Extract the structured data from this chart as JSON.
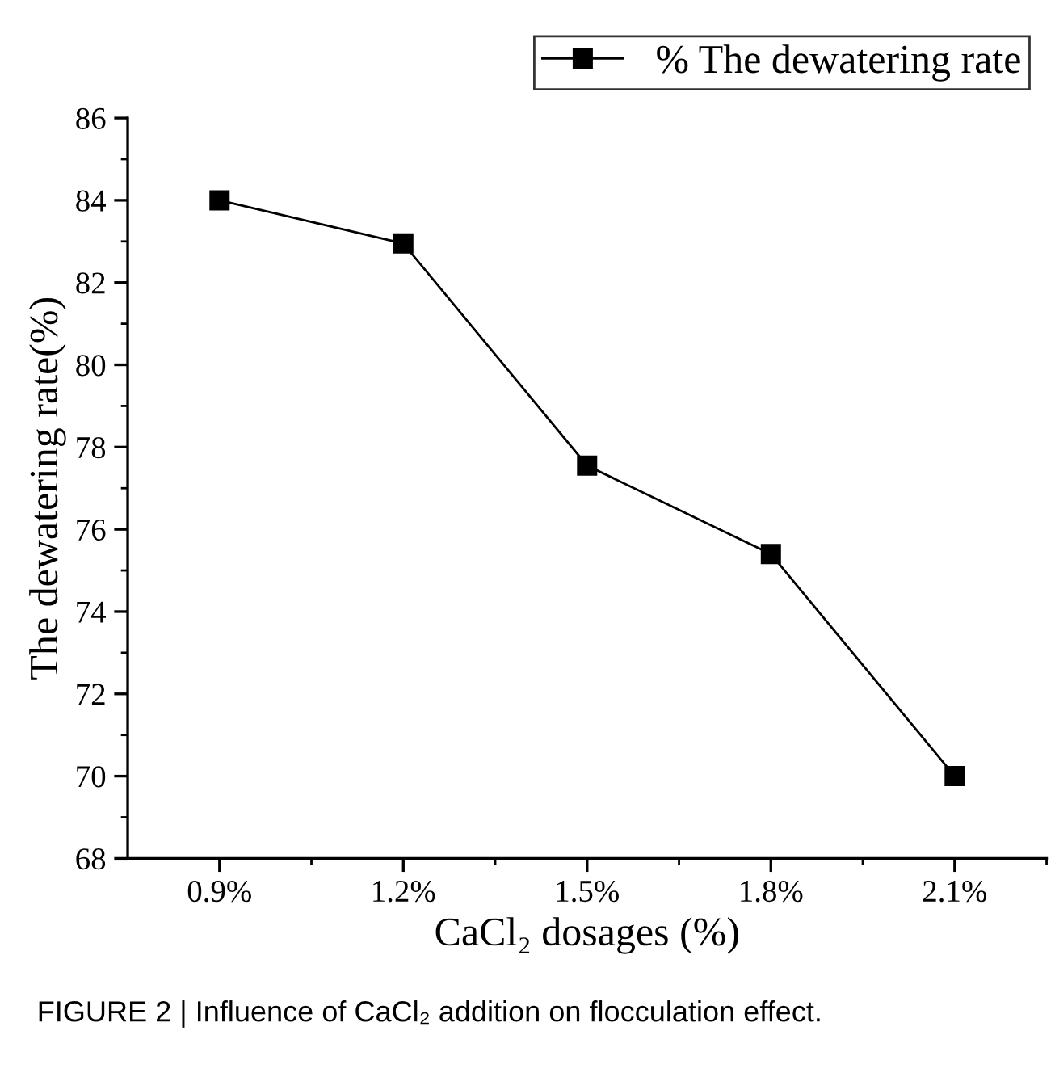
{
  "chart_data": {
    "type": "line",
    "categories": [
      "0.9%",
      "1.2%",
      "1.5%",
      "1.8%",
      "2.1%"
    ],
    "series": [
      {
        "name": "% The dewatering rate",
        "color": "#000000",
        "values": [
          84.0,
          82.95,
          77.55,
          75.4,
          70.0
        ]
      }
    ],
    "xlabel": "CaCl₂ dosages (%)",
    "ylabel": "The dewatering rate(%)",
    "ylim": [
      68,
      86
    ],
    "yticks": [
      68,
      70,
      72,
      74,
      76,
      78,
      80,
      82,
      84,
      86
    ],
    "marker": "square",
    "line_style": "solid",
    "legend": "top right",
    "grid": false,
    "annotations": [
      "FIGURE 2 | Influence of CaCl₂ addition on flocculation effect."
    ]
  }
}
